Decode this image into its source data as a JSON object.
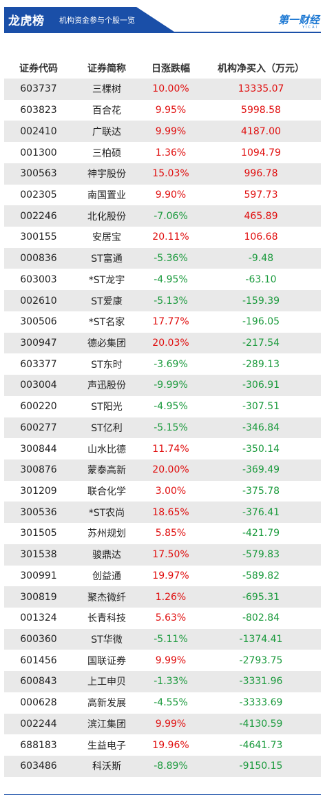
{
  "banner": {
    "title": "龙虎榜",
    "subtitle": "机构资金参与个股一览",
    "logo": "第一财经",
    "logo_sub": "YICAI"
  },
  "table": {
    "headers": [
      "证券代码",
      "证券简称",
      "日涨跌幅",
      "机构净买入（万元）"
    ],
    "rows": [
      {
        "code": "603737",
        "name": "三棵树",
        "change": "10.00%",
        "net": "13335.07",
        "dir": "up",
        "netdir": "up"
      },
      {
        "code": "603823",
        "name": "百合花",
        "change": "9.95%",
        "net": "5998.58",
        "dir": "up",
        "netdir": "up"
      },
      {
        "code": "002410",
        "name": "广联达",
        "change": "9.99%",
        "net": "4187.00",
        "dir": "up",
        "netdir": "up"
      },
      {
        "code": "001300",
        "name": "三柏硕",
        "change": "1.36%",
        "net": "1094.79",
        "dir": "up",
        "netdir": "up"
      },
      {
        "code": "300563",
        "name": "神宇股份",
        "change": "15.03%",
        "net": "996.78",
        "dir": "up",
        "netdir": "up"
      },
      {
        "code": "002305",
        "name": "南国置业",
        "change": "9.90%",
        "net": "597.73",
        "dir": "up",
        "netdir": "up"
      },
      {
        "code": "002246",
        "name": "北化股份",
        "change": "-7.06%",
        "net": "465.89",
        "dir": "down",
        "netdir": "up"
      },
      {
        "code": "300155",
        "name": "安居宝",
        "change": "20.11%",
        "net": "106.68",
        "dir": "up",
        "netdir": "up"
      },
      {
        "code": "000836",
        "name": "ST富通",
        "change": "-5.36%",
        "net": "-9.48",
        "dir": "down",
        "netdir": "down"
      },
      {
        "code": "603003",
        "name": "*ST龙宇",
        "change": "-4.95%",
        "net": "-63.10",
        "dir": "down",
        "netdir": "down"
      },
      {
        "code": "002610",
        "name": "ST爱康",
        "change": "-5.13%",
        "net": "-159.39",
        "dir": "down",
        "netdir": "down"
      },
      {
        "code": "300506",
        "name": "*ST名家",
        "change": "17.77%",
        "net": "-196.05",
        "dir": "up",
        "netdir": "down"
      },
      {
        "code": "300947",
        "name": "德必集团",
        "change": "20.03%",
        "net": "-217.54",
        "dir": "up",
        "netdir": "down"
      },
      {
        "code": "603377",
        "name": "ST东时",
        "change": "-3.69%",
        "net": "-289.13",
        "dir": "down",
        "netdir": "down"
      },
      {
        "code": "003004",
        "name": "声迅股份",
        "change": "-9.99%",
        "net": "-306.91",
        "dir": "down",
        "netdir": "down"
      },
      {
        "code": "600220",
        "name": "ST阳光",
        "change": "-4.95%",
        "net": "-307.51",
        "dir": "down",
        "netdir": "down"
      },
      {
        "code": "600277",
        "name": "ST亿利",
        "change": "-5.15%",
        "net": "-346.84",
        "dir": "down",
        "netdir": "down"
      },
      {
        "code": "300844",
        "name": "山水比德",
        "change": "11.74%",
        "net": "-350.14",
        "dir": "up",
        "netdir": "down"
      },
      {
        "code": "300876",
        "name": "蒙泰高新",
        "change": "20.00%",
        "net": "-369.49",
        "dir": "up",
        "netdir": "down"
      },
      {
        "code": "301209",
        "name": "联合化学",
        "change": "3.00%",
        "net": "-375.78",
        "dir": "up",
        "netdir": "down"
      },
      {
        "code": "300536",
        "name": "*ST农尚",
        "change": "18.65%",
        "net": "-376.41",
        "dir": "up",
        "netdir": "down"
      },
      {
        "code": "301505",
        "name": "苏州规划",
        "change": "5.85%",
        "net": "-421.79",
        "dir": "up",
        "netdir": "down"
      },
      {
        "code": "301538",
        "name": "骏鼎达",
        "change": "17.50%",
        "net": "-579.83",
        "dir": "up",
        "netdir": "down"
      },
      {
        "code": "300991",
        "name": "创益通",
        "change": "19.97%",
        "net": "-589.82",
        "dir": "up",
        "netdir": "down"
      },
      {
        "code": "300819",
        "name": "聚杰微纤",
        "change": "1.26%",
        "net": "-695.31",
        "dir": "up",
        "netdir": "down"
      },
      {
        "code": "001324",
        "name": "长青科技",
        "change": "5.63%",
        "net": "-802.84",
        "dir": "up",
        "netdir": "down"
      },
      {
        "code": "600360",
        "name": "ST华微",
        "change": "-5.11%",
        "net": "-1374.41",
        "dir": "down",
        "netdir": "down"
      },
      {
        "code": "601456",
        "name": "国联证券",
        "change": "9.99%",
        "net": "-2793.75",
        "dir": "up",
        "netdir": "down"
      },
      {
        "code": "600843",
        "name": "上工申贝",
        "change": "-1.33%",
        "net": "-3331.96",
        "dir": "down",
        "netdir": "down"
      },
      {
        "code": "000628",
        "name": "高新发展",
        "change": "-4.55%",
        "net": "-3333.69",
        "dir": "down",
        "netdir": "down"
      },
      {
        "code": "002244",
        "name": "滨江集团",
        "change": "9.99%",
        "net": "-4130.59",
        "dir": "up",
        "netdir": "down"
      },
      {
        "code": "688183",
        "name": "生益电子",
        "change": "19.96%",
        "net": "-4641.73",
        "dir": "up",
        "netdir": "down"
      },
      {
        "code": "603486",
        "name": "科沃斯",
        "change": "-8.89%",
        "net": "-9150.15",
        "dir": "down",
        "netdir": "down"
      }
    ]
  },
  "colors": {
    "accent": "#1a4fa8",
    "up": "#e00d0d",
    "down": "#1a9a3c",
    "row_alt": "#e9e9e9"
  }
}
